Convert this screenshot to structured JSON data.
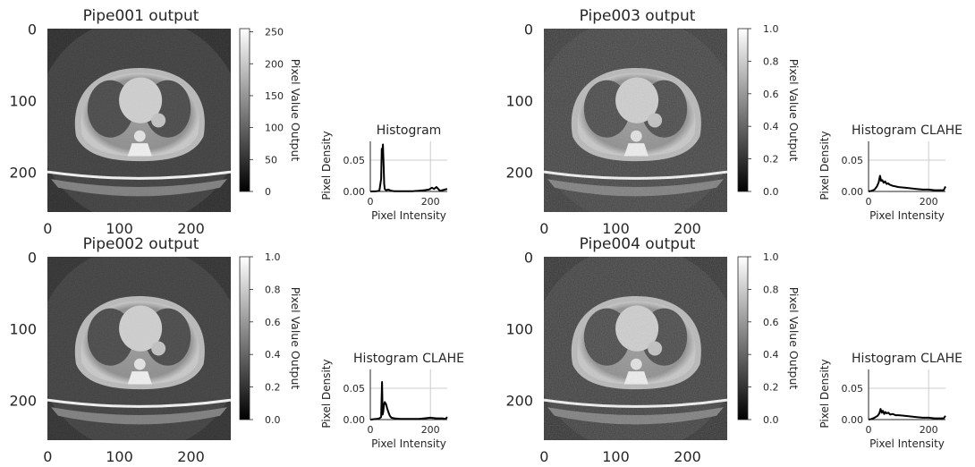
{
  "chart_data": [
    {
      "id": "pipe001",
      "type": "heatmap",
      "title": "Pipe001 output",
      "x_ticks": [
        0,
        100,
        200
      ],
      "y_ticks": [
        0,
        100,
        200
      ],
      "image_size": 256,
      "colorbar": {
        "label": "Pixel Value Output",
        "ticks": [
          0,
          50,
          100,
          150,
          200,
          250
        ],
        "range": [
          0,
          255
        ]
      },
      "histogram": {
        "type": "line",
        "title": "Histogram",
        "xlabel": "Pixel Intensity",
        "ylabel": "Pixel Density",
        "xlim": [
          0,
          256
        ],
        "ylim": [
          0,
          0.08
        ],
        "x_ticks": [
          0,
          200
        ],
        "y_ticks": [
          "0.00",
          "0.05"
        ],
        "x": [
          0,
          20,
          30,
          36,
          38,
          40,
          42,
          44,
          46,
          48,
          52,
          60,
          70,
          80,
          100,
          120,
          140,
          160,
          180,
          195,
          205,
          212,
          220,
          232,
          240,
          248,
          256
        ],
        "y": [
          0,
          0.0005,
          0.001,
          0.02,
          0.068,
          0.061,
          0.075,
          0.045,
          0.012,
          0.004,
          0.002,
          0.003,
          0.001,
          0.0005,
          0.0005,
          0.0005,
          0.0005,
          0.001,
          0.002,
          0.003,
          0.006,
          0.004,
          0.007,
          0.001,
          0.002,
          0.003,
          0.004
        ]
      }
    },
    {
      "id": "pipe003",
      "type": "heatmap",
      "title": "Pipe003 output",
      "x_ticks": [
        0,
        100,
        200
      ],
      "y_ticks": [
        0,
        100,
        200
      ],
      "image_size": 256,
      "colorbar": {
        "label": "Pixel Value Output",
        "ticks": [
          "0.0",
          "0.2",
          "0.4",
          "0.6",
          "0.8",
          "1.0"
        ],
        "range": [
          0,
          1
        ]
      },
      "histogram": {
        "type": "line",
        "title": "Histogram CLAHE",
        "xlabel": "Pixel Intensity",
        "ylabel": "Pixel Density",
        "xlim": [
          0,
          256
        ],
        "ylim": [
          0,
          0.08
        ],
        "x_ticks": [
          0,
          200
        ],
        "y_ticks": [
          "0.00",
          "0.05"
        ],
        "x": [
          0,
          10,
          20,
          28,
          34,
          38,
          42,
          46,
          50,
          55,
          60,
          65,
          70,
          80,
          90,
          100,
          120,
          140,
          160,
          180,
          200,
          220,
          240,
          250,
          256
        ],
        "y": [
          0,
          0.001,
          0.003,
          0.008,
          0.015,
          0.025,
          0.017,
          0.018,
          0.014,
          0.016,
          0.012,
          0.013,
          0.011,
          0.009,
          0.008,
          0.007,
          0.006,
          0.005,
          0.004,
          0.003,
          0.003,
          0.002,
          0.002,
          0.002,
          0.008
        ]
      }
    },
    {
      "id": "pipe002",
      "type": "heatmap",
      "title": "Pipe002 output",
      "x_ticks": [
        0,
        100,
        200
      ],
      "y_ticks": [
        0,
        100,
        200
      ],
      "image_size": 256,
      "colorbar": {
        "label": "Pixel Value Output",
        "ticks": [
          "0.0",
          "0.2",
          "0.4",
          "0.6",
          "0.8",
          "1.0"
        ],
        "range": [
          0,
          1
        ]
      },
      "histogram": {
        "type": "line",
        "title": "Histogram CLAHE",
        "xlabel": "Pixel Intensity",
        "ylabel": "Pixel Density",
        "xlim": [
          0,
          256
        ],
        "ylim": [
          0,
          0.08
        ],
        "x_ticks": [
          0,
          200
        ],
        "y_ticks": [
          "0.00",
          "0.05"
        ],
        "x": [
          0,
          20,
          30,
          36,
          39,
          41,
          43,
          45,
          48,
          52,
          56,
          60,
          65,
          70,
          80,
          100,
          120,
          140,
          160,
          180,
          200,
          220,
          240,
          250,
          256
        ],
        "y": [
          0,
          0.001,
          0.002,
          0.004,
          0.06,
          0.008,
          0.012,
          0.022,
          0.028,
          0.025,
          0.018,
          0.012,
          0.006,
          0.003,
          0.002,
          0.001,
          0.001,
          0.001,
          0.001,
          0.002,
          0.003,
          0.002,
          0.002,
          0.001,
          0.004
        ]
      }
    },
    {
      "id": "pipe004",
      "type": "heatmap",
      "title": "Pipe004 output",
      "x_ticks": [
        0,
        100,
        200
      ],
      "y_ticks": [
        0,
        100,
        200
      ],
      "image_size": 256,
      "colorbar": {
        "label": "Pixel Value Output",
        "ticks": [
          "0.0",
          "0.2",
          "0.4",
          "0.6",
          "0.8",
          "1.0"
        ],
        "range": [
          0,
          1
        ]
      },
      "histogram": {
        "type": "line",
        "title": "Histogram CLAHE",
        "xlabel": "Pixel Intensity",
        "ylabel": "Pixel Density",
        "xlim": [
          0,
          256
        ],
        "ylim": [
          0,
          0.08
        ],
        "x_ticks": [
          0,
          200
        ],
        "y_ticks": [
          "0.00",
          "0.05"
        ],
        "x": [
          0,
          10,
          20,
          30,
          36,
          40,
          44,
          48,
          52,
          56,
          60,
          66,
          72,
          80,
          90,
          100,
          120,
          140,
          160,
          180,
          200,
          220,
          240,
          250,
          256
        ],
        "y": [
          0,
          0.001,
          0.003,
          0.006,
          0.01,
          0.017,
          0.011,
          0.014,
          0.009,
          0.012,
          0.01,
          0.011,
          0.008,
          0.009,
          0.007,
          0.007,
          0.006,
          0.005,
          0.004,
          0.003,
          0.003,
          0.002,
          0.002,
          0.002,
          0.006
        ]
      }
    }
  ]
}
